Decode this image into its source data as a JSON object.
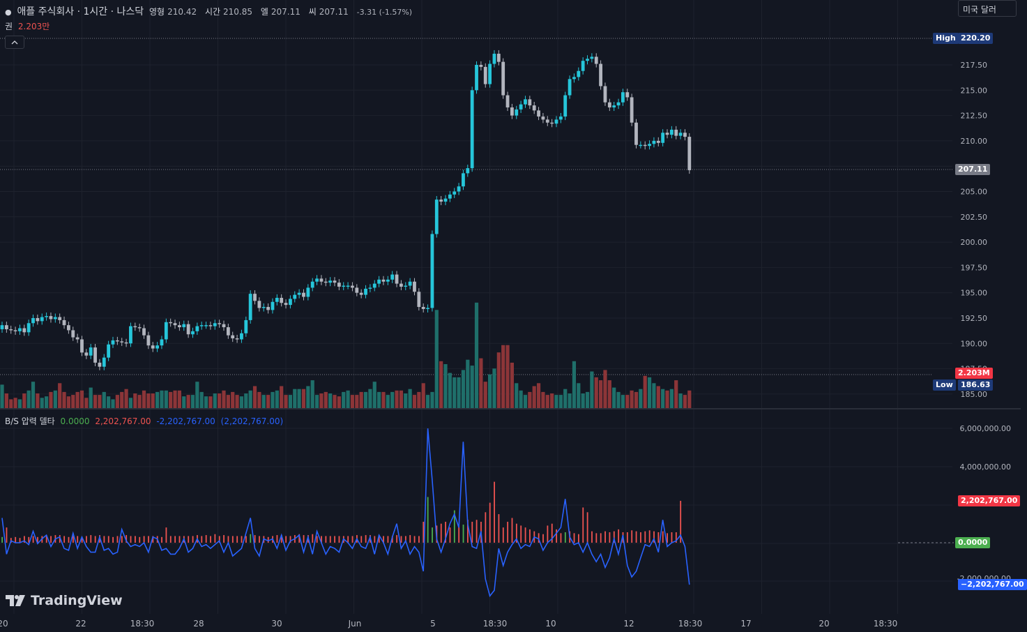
{
  "header": {
    "symbol": "애플 주식회사 · 1시간 · 나스닥",
    "open_label": "영형",
    "open": "210.42",
    "high_label": "시간",
    "high": "210.85",
    "low_label": "엘",
    "low": "207.11",
    "close_label": "씨",
    "close": "207.11",
    "change": "-3.31 (-1.57%)",
    "volume_label": "권",
    "volume": "2.203만",
    "currency": "미국 달러"
  },
  "indicator": {
    "name": "B/S 압력 델타",
    "v1": "0.0000",
    "v2": "2,202,767.00",
    "v3": "-2,202,767.00",
    "v4": "(2,202,767.00)"
  },
  "price_axis": {
    "ticks": [
      "217.50",
      "215.00",
      "212.50",
      "210.00",
      "205.00",
      "202.50",
      "200.00",
      "197.50",
      "195.00",
      "192.50",
      "190.00",
      "187.50",
      "185.00"
    ],
    "high_label": "High",
    "high_value": "220.20",
    "low_label": "Low",
    "low_value": "186.63",
    "last_price": "207.11",
    "volume_tag": "2.203M"
  },
  "indicator_axis": {
    "ticks": [
      "6,000,000.00",
      "4,000,000.00",
      "-2,000,000.00"
    ],
    "pos_tag": "2,202,767.00",
    "zero_tag": "0.0000",
    "neg_tag": "−2,202,767.00"
  },
  "time_axis": [
    "20",
    "22",
    "18:30",
    "28",
    "30",
    "Jun",
    "5",
    "18:30",
    "10",
    "12",
    "18:30",
    "17",
    "20",
    "18:30"
  ],
  "brand": "TradingView",
  "colors": {
    "up": "#26c6da",
    "down": "#b2b5be",
    "vol_up": "#1f6f6a",
    "vol_down": "#8c3538",
    "delta_pos": "#ef5350",
    "delta_neg": "#2962ff",
    "delta_green": "#4caf50"
  },
  "chart_data": {
    "type": "candlestick",
    "y_range": [
      184.5,
      221.0
    ],
    "closes": [
      191.8,
      191.4,
      191.3,
      191.2,
      191.5,
      191.1,
      192.0,
      192.5,
      192.2,
      192.6,
      192.7,
      192.4,
      192.6,
      192.3,
      191.8,
      191.3,
      190.6,
      190.4,
      189.1,
      188.8,
      189.6,
      188.1,
      187.7,
      188.6,
      189.9,
      190.3,
      190.2,
      190.1,
      190.0,
      191.7,
      191.6,
      191.5,
      190.8,
      189.8,
      189.5,
      189.8,
      190.4,
      192.1,
      192.0,
      191.8,
      191.6,
      191.9,
      190.9,
      191.2,
      191.7,
      191.8,
      191.8,
      191.7,
      192.0,
      191.9,
      191.6,
      190.8,
      190.5,
      190.4,
      191.0,
      192.3,
      194.9,
      194.2,
      193.5,
      193.6,
      193.3,
      194.1,
      194.5,
      194.0,
      193.8,
      194.4,
      194.8,
      195.0,
      194.6,
      195.5,
      196.1,
      196.4,
      196.1,
      196.0,
      196.2,
      196.0,
      195.6,
      195.7,
      195.7,
      195.5,
      195.0,
      194.8,
      195.4,
      195.5,
      195.9,
      196.3,
      196.1,
      196.3,
      196.8,
      195.9,
      195.6,
      195.7,
      196.1,
      195.1,
      193.6,
      193.4,
      193.5,
      200.8,
      204.2,
      204.0,
      204.3,
      204.7,
      205.0,
      205.5,
      206.8,
      207.3,
      215.0,
      217.5,
      217.3,
      215.6,
      217.6,
      218.6,
      217.8,
      214.5,
      213.3,
      212.5,
      213.1,
      213.6,
      214.1,
      213.5,
      213.0,
      212.4,
      212.1,
      211.8,
      211.7,
      212.1,
      212.4,
      214.5,
      216.1,
      216.3,
      216.9,
      217.9,
      218.1,
      218.3,
      217.6,
      215.4,
      213.8,
      213.3,
      213.5,
      213.8,
      214.8,
      214.3,
      211.8,
      209.6,
      209.6,
      209.5,
      209.7,
      210.0,
      209.8,
      210.8,
      210.6,
      211.1,
      210.5,
      210.8,
      210.4,
      207.1
    ],
    "volumes": [
      0.8,
      0.5,
      0.3,
      0.35,
      0.3,
      0.5,
      0.6,
      0.9,
      0.5,
      0.35,
      0.4,
      0.55,
      0.6,
      0.85,
      0.55,
      0.4,
      0.45,
      0.55,
      0.6,
      0.35,
      0.7,
      0.45,
      0.45,
      0.55,
      0.4,
      0.3,
      0.45,
      0.55,
      0.65,
      0.35,
      0.5,
      0.45,
      0.6,
      0.5,
      0.5,
      0.55,
      0.6,
      0.6,
      0.55,
      0.6,
      0.6,
      0.4,
      0.45,
      0.45,
      0.9,
      0.55,
      0.4,
      0.4,
      0.5,
      0.5,
      0.6,
      0.45,
      0.55,
      0.45,
      0.4,
      0.5,
      0.6,
      0.75,
      0.55,
      0.45,
      0.45,
      0.55,
      0.6,
      0.75,
      0.45,
      0.45,
      0.65,
      0.65,
      0.65,
      0.75,
      0.95,
      0.45,
      0.5,
      0.55,
      0.5,
      0.45,
      0.4,
      0.55,
      0.6,
      0.45,
      0.45,
      0.55,
      0.55,
      0.65,
      0.9,
      0.55,
      0.55,
      0.45,
      0.55,
      0.6,
      0.6,
      0.5,
      0.65,
      0.45,
      0.55,
      0.85,
      0.45,
      0.55,
      3.35,
      1.6,
      1.5,
      1.2,
      1.05,
      1.05,
      1.3,
      1.65,
      1.45,
      3.6,
      1.7,
      0.9,
      1.15,
      1.35,
      1.9,
      2.15,
      2.15,
      1.55,
      0.85,
      0.6,
      0.45,
      0.55,
      0.75,
      0.85,
      0.55,
      0.45,
      0.5,
      0.45,
      0.45,
      0.65,
      0.5,
      1.6,
      0.85,
      0.5,
      0.55,
      1.25,
      1.05,
      0.95,
      1.3,
      0.95,
      0.7,
      0.55,
      0.45,
      0.45,
      0.6,
      0.55,
      0.65,
      1.1,
      1.05,
      0.85,
      0.75,
      0.65,
      0.6,
      0.65,
      0.95,
      0.5,
      0.45,
      0.6,
      0.5,
      0.55
    ],
    "delta_bars": [
      0.3,
      0.8,
      0.25,
      0.3,
      0.25,
      0.35,
      0.3,
      0.35,
      0.3,
      0.35,
      0.4,
      0.35,
      0.4,
      0.4,
      0.35,
      0.3,
      0.35,
      0.35,
      0.3,
      0.35,
      0.4,
      0.35,
      0.4,
      0.35,
      0.35,
      0.3,
      0.35,
      0.35,
      0.4,
      0.35,
      0.35,
      0.3,
      0.35,
      0.35,
      0.35,
      0.35,
      0.3,
      0.8,
      0.35,
      0.35,
      0.35,
      0.35,
      0.35,
      0.35,
      0.4,
      0.35,
      0.4,
      0.35,
      0.45,
      0.35,
      0.4,
      0.35,
      0.35,
      0.35,
      0.35,
      0.35,
      0.45,
      0.4,
      0.35,
      0.35,
      0.3,
      0.35,
      0.4,
      0.4,
      0.35,
      0.35,
      0.4,
      0.45,
      0.4,
      0.4,
      0.45,
      0.35,
      0.35,
      0.35,
      0.35,
      0.35,
      0.35,
      0.35,
      0.35,
      0.35,
      0.4,
      0.35,
      0.4,
      0.4,
      0.35,
      0.4,
      0.35,
      0.35,
      0.35,
      0.4,
      0.35,
      0.35,
      0.4,
      0.35,
      0.35,
      1.1,
      2.4,
      0.8,
      0.9,
      1.0,
      1.1,
      0.8,
      1.7,
      0.9,
      0.95,
      1.2,
      1.1,
      1.2,
      1.1,
      1.6,
      2.1,
      3.2,
      1.5,
      0.8,
      1.1,
      1.3,
      1.0,
      0.9,
      0.8,
      0.7,
      0.6,
      0.5,
      0.45,
      0.9,
      1.0,
      0.7,
      0.5,
      0.55,
      0.6,
      0.5,
      0.45,
      1.85,
      1.6,
      0.6,
      0.5,
      0.5,
      0.6,
      0.55,
      0.6,
      0.7,
      0.55,
      0.55,
      0.65,
      0.6,
      0.55,
      0.6,
      0.65,
      0.6,
      0.55,
      0.6,
      0.5,
      0.55,
      0.55,
      2.2
    ],
    "delta_line": [
      1.3,
      -0.6,
      0.1,
      0.0,
      0.0,
      0.1,
      -0.1,
      0.6,
      -0.05,
      0.2,
      0.4,
      -0.2,
      0.2,
      0.3,
      -0.3,
      -0.4,
      0.5,
      -0.3,
      0.3,
      -0.2,
      -0.5,
      -0.5,
      0.3,
      -0.4,
      -0.3,
      -0.6,
      -0.5,
      0.7,
      0.1,
      -0.2,
      -0.1,
      -0.2,
      0.0,
      -0.5,
      0.3,
      0.2,
      -0.4,
      -0.3,
      -0.6,
      -0.6,
      -0.3,
      0.2,
      -0.5,
      -0.3,
      0.2,
      -0.2,
      -0.1,
      -0.3,
      -0.1,
      0.1,
      -0.5,
      0.0,
      -0.7,
      -0.5,
      -0.3,
      0.5,
      1.3,
      -0.3,
      -0.7,
      0.2,
      0.1,
      0.2,
      -0.3,
      0.4,
      -0.4,
      0.1,
      0.2,
      0.4,
      -0.5,
      0.3,
      -0.6,
      0.6,
      0.0,
      -0.6,
      -0.2,
      -0.3,
      -0.5,
      0.2,
      0.0,
      -0.3,
      0.2,
      -0.2,
      -0.3,
      0.3,
      -0.6,
      0.4,
      0.0,
      -0.6,
      0.3,
      1.0,
      -0.3,
      0.1,
      -0.6,
      -0.2,
      -0.5,
      -1.5,
      6.0,
      3.3,
      0.2,
      -0.5,
      0.2,
      1.0,
      1.5,
      0.8,
      5.3,
      1.0,
      -0.2,
      -0.3,
      0.6,
      -1.9,
      -2.8,
      -2.5,
      -0.3,
      -1.2,
      -0.5,
      -0.1,
      0.2,
      -0.3,
      -0.1,
      -0.2,
      0.3,
      0.2,
      -0.4,
      0.0,
      0.2,
      0.5,
      0.8,
      2.3,
      0.3,
      -0.1,
      0.0,
      -0.5,
      0.0,
      -0.6,
      -1.0,
      -0.6,
      -1.3,
      -0.8,
      0.2,
      -0.6,
      0.4,
      -1.2,
      -1.8,
      -1.5,
      -0.8,
      -0.1,
      -0.2,
      0.2,
      -0.5,
      1.2,
      -0.2,
      0.0,
      0.1,
      0.4,
      -0.2,
      -2.2
    ]
  }
}
